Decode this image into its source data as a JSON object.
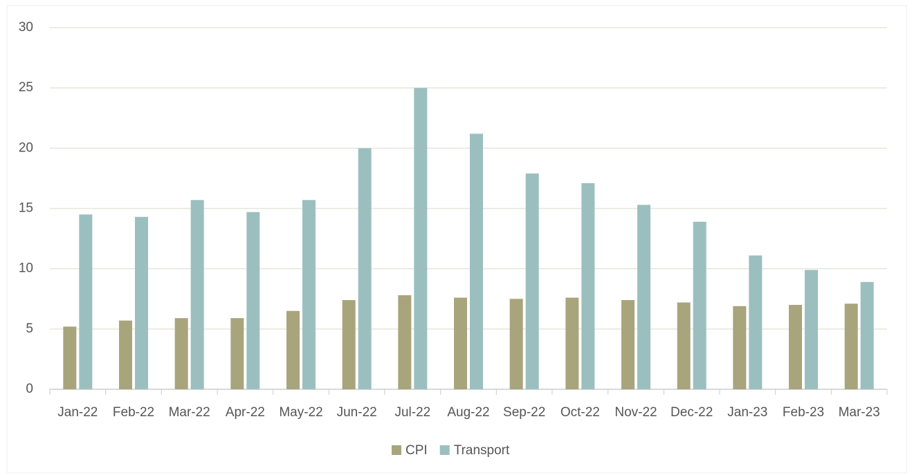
{
  "chart_data": {
    "type": "bar",
    "categories": [
      "Jan-22",
      "Feb-22",
      "Mar-22",
      "Apr-22",
      "May-22",
      "Jun-22",
      "Jul-22",
      "Aug-22",
      "Sep-22",
      "Oct-22",
      "Nov-22",
      "Dec-22",
      "Jan-23",
      "Feb-23",
      "Mar-23"
    ],
    "series": [
      {
        "name": "CPI",
        "color": "#a8a47c",
        "values": [
          5.2,
          5.7,
          5.9,
          5.9,
          6.5,
          7.4,
          7.8,
          7.6,
          7.5,
          7.6,
          7.4,
          7.2,
          6.9,
          7.0,
          7.1
        ]
      },
      {
        "name": "Transport",
        "color": "#9bbfbf",
        "values": [
          14.5,
          14.3,
          15.7,
          14.7,
          15.7,
          20,
          25,
          21.2,
          17.9,
          17.1,
          15.3,
          13.9,
          11.1,
          9.9,
          8.9
        ]
      }
    ],
    "ylim": [
      0,
      30
    ],
    "yticks": [
      0,
      5,
      10,
      15,
      20,
      25,
      30
    ],
    "grid": true,
    "legend": "bottom"
  }
}
